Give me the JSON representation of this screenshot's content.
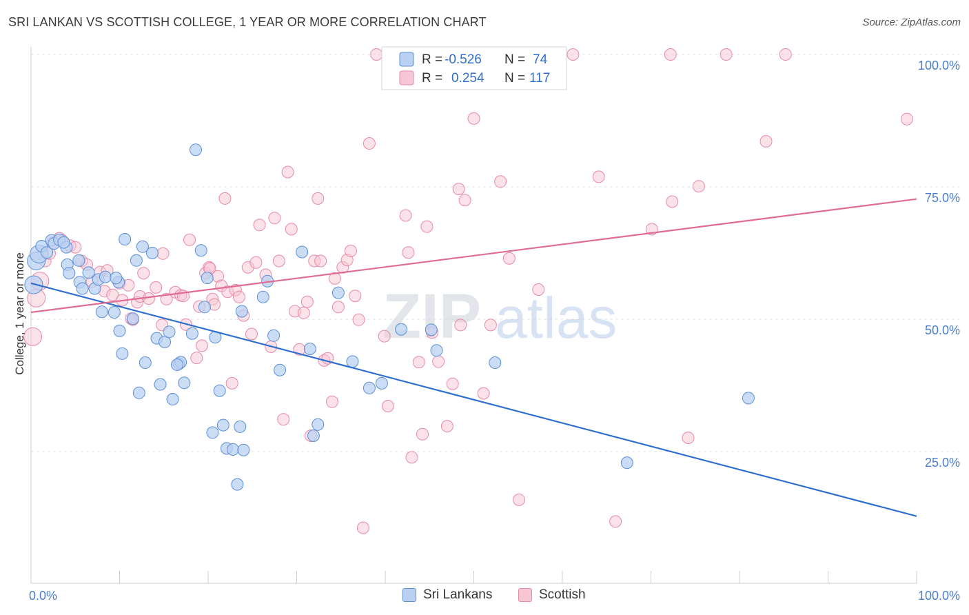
{
  "header": {
    "title": "SRI LANKAN VS SCOTTISH COLLEGE, 1 YEAR OR MORE CORRELATION CHART",
    "source": "Source: ZipAtlas.com"
  },
  "watermark": {
    "zip": "ZIP",
    "atlas": "atlas"
  },
  "colors": {
    "blue": "#5b8fd6",
    "blue_fill": "#b9d0f2",
    "blue_line": "#2e6fcf",
    "pink": "#e68aa6",
    "pink_fill": "#f7c6d4",
    "pink_line": "#e06b93",
    "tick_text": "#4a7cc9"
  },
  "legend": {
    "r_label": "R =",
    "n_label": "N =",
    "rows": [
      {
        "series": "Sri Lankans",
        "r": "-0.526",
        "n": "74"
      },
      {
        "series": "Scottish",
        "r": "0.254",
        "n": "117"
      }
    ]
  },
  "bottom_legend": [
    "Sri Lankans",
    "Scottish"
  ],
  "chart_data": {
    "type": "scatter",
    "title": "SRI LANKAN VS SCOTTISH COLLEGE, 1 YEAR OR MORE CORRELATION CHART",
    "xlabel": "",
    "ylabel": "College, 1 year or more",
    "xlim": [
      0,
      100
    ],
    "ylim": [
      3,
      101
    ],
    "x_tick_labels": [
      "0.0%",
      "100.0%"
    ],
    "y_ticks": [
      25,
      50,
      75,
      100
    ],
    "y_tick_labels": [
      "25.0%",
      "50.0%",
      "75.0%",
      "100.0%"
    ],
    "grid": true,
    "legend_position": "top-center",
    "series": [
      {
        "name": "Sri Lankans",
        "r": -0.526,
        "n": 74,
        "trend": {
          "x": [
            0,
            100
          ],
          "y": [
            56.8,
            12.8
          ]
        },
        "points": [
          [
            0.3,
            56.5
          ],
          [
            0.6,
            61.0
          ],
          [
            0.9,
            62.3
          ],
          [
            1.2,
            63.8
          ],
          [
            1.8,
            62.6
          ],
          [
            2.3,
            64.9
          ],
          [
            2.6,
            64.3
          ],
          [
            3.2,
            65.0
          ],
          [
            4.0,
            63.6
          ],
          [
            4.1,
            60.3
          ],
          [
            4.3,
            58.7
          ],
          [
            5.4,
            61.1
          ],
          [
            5.5,
            57.0
          ],
          [
            5.8,
            55.8
          ],
          [
            6.5,
            58.8
          ],
          [
            7.2,
            55.8
          ],
          [
            7.6,
            57.5
          ],
          [
            8.0,
            51.4
          ],
          [
            8.4,
            58.0
          ],
          [
            9.4,
            51.3
          ],
          [
            9.9,
            57.0
          ],
          [
            10.0,
            47.8
          ],
          [
            10.3,
            43.5
          ],
          [
            10.6,
            65.1
          ],
          [
            11.5,
            50.1
          ],
          [
            11.9,
            61.1
          ],
          [
            12.2,
            36.1
          ],
          [
            12.6,
            63.7
          ],
          [
            12.9,
            41.8
          ],
          [
            13.7,
            62.5
          ],
          [
            14.2,
            46.4
          ],
          [
            14.6,
            37.7
          ],
          [
            15.1,
            45.7
          ],
          [
            15.6,
            47.6
          ],
          [
            16.0,
            34.9
          ],
          [
            16.7,
            41.6
          ],
          [
            16.9,
            41.9
          ],
          [
            17.3,
            38.0
          ],
          [
            18.2,
            47.3
          ],
          [
            18.6,
            82.0
          ],
          [
            19.2,
            63.0
          ],
          [
            19.6,
            52.3
          ],
          [
            19.9,
            57.8
          ],
          [
            20.5,
            28.6
          ],
          [
            20.8,
            46.6
          ],
          [
            21.3,
            36.5
          ],
          [
            21.7,
            30.0
          ],
          [
            22.1,
            25.6
          ],
          [
            22.8,
            25.4
          ],
          [
            23.6,
            29.7
          ],
          [
            23.8,
            51.5
          ],
          [
            23.3,
            18.8
          ],
          [
            24.0,
            25.3
          ],
          [
            26.2,
            54.2
          ],
          [
            26.7,
            57.2
          ],
          [
            27.4,
            46.9
          ],
          [
            28.1,
            40.4
          ],
          [
            30.6,
            62.7
          ],
          [
            31.5,
            44.4
          ],
          [
            31.9,
            28.0
          ],
          [
            32.4,
            30.1
          ],
          [
            34.7,
            55.0
          ],
          [
            36.3,
            42.0
          ],
          [
            38.2,
            37.0
          ],
          [
            39.6,
            37.9
          ],
          [
            41.8,
            48.1
          ],
          [
            45.2,
            48.0
          ],
          [
            45.8,
            44.1
          ],
          [
            52.4,
            41.8
          ],
          [
            67.3,
            22.9
          ],
          [
            81.0,
            35.1
          ],
          [
            16.5,
            41.4
          ],
          [
            9.6,
            57.8
          ],
          [
            3.7,
            64.5
          ]
        ]
      },
      {
        "name": "Scottish",
        "r": 0.254,
        "n": 117,
        "trend": {
          "x": [
            0,
            100
          ],
          "y": [
            51.3,
            72.7
          ]
        },
        "points": [
          [
            0.2,
            46.7
          ],
          [
            0.6,
            54.0
          ],
          [
            1.0,
            57.2
          ],
          [
            1.6,
            61.0
          ],
          [
            2.1,
            62.4
          ],
          [
            2.4,
            64.4
          ],
          [
            3.2,
            65.3
          ],
          [
            3.5,
            64.9
          ],
          [
            4.4,
            63.9
          ],
          [
            5.0,
            63.6
          ],
          [
            5.7,
            61.0
          ],
          [
            6.3,
            60.3
          ],
          [
            6.9,
            57.1
          ],
          [
            7.8,
            58.9
          ],
          [
            8.3,
            55.3
          ],
          [
            8.6,
            59.2
          ],
          [
            9.2,
            54.6
          ],
          [
            10.0,
            56.8
          ],
          [
            10.3,
            53.6
          ],
          [
            11.0,
            56.4
          ],
          [
            11.3,
            50.1
          ],
          [
            11.5,
            49.9
          ],
          [
            12.0,
            53.2
          ],
          [
            12.3,
            54.3
          ],
          [
            12.7,
            58.7
          ],
          [
            13.3,
            53.9
          ],
          [
            14.1,
            56.0
          ],
          [
            14.8,
            48.9
          ],
          [
            14.9,
            62.4
          ],
          [
            15.3,
            53.8
          ],
          [
            16.3,
            55.1
          ],
          [
            16.9,
            54.5
          ],
          [
            17.2,
            54.4
          ],
          [
            17.5,
            49.0
          ],
          [
            17.9,
            65.0
          ],
          [
            18.7,
            42.7
          ],
          [
            19.0,
            52.4
          ],
          [
            19.3,
            45.0
          ],
          [
            19.7,
            58.7
          ],
          [
            20.1,
            59.8
          ],
          [
            20.5,
            53.8
          ],
          [
            20.7,
            52.8
          ],
          [
            21.1,
            58.1
          ],
          [
            21.5,
            56.3
          ],
          [
            21.9,
            72.8
          ],
          [
            22.2,
            55.2
          ],
          [
            22.7,
            37.9
          ],
          [
            23.1,
            55.5
          ],
          [
            23.5,
            54.2
          ],
          [
            24.0,
            50.7
          ],
          [
            24.5,
            59.8
          ],
          [
            24.9,
            47.2
          ],
          [
            25.4,
            60.7
          ],
          [
            25.8,
            67.8
          ],
          [
            26.5,
            58.4
          ],
          [
            27.1,
            44.8
          ],
          [
            27.5,
            69.1
          ],
          [
            28.0,
            61.0
          ],
          [
            28.5,
            31.1
          ],
          [
            29.0,
            77.8
          ],
          [
            29.4,
            67.0
          ],
          [
            29.8,
            51.5
          ],
          [
            30.3,
            44.3
          ],
          [
            30.8,
            51.2
          ],
          [
            31.2,
            53.3
          ],
          [
            31.6,
            28.0
          ],
          [
            32.0,
            61.0
          ],
          [
            32.4,
            72.8
          ],
          [
            32.7,
            61.0
          ],
          [
            33.1,
            42.2
          ],
          [
            33.5,
            42.6
          ],
          [
            34.0,
            34.4
          ],
          [
            34.3,
            57.7
          ],
          [
            34.7,
            52.3
          ],
          [
            35.2,
            59.8
          ],
          [
            35.7,
            61.2
          ],
          [
            36.1,
            62.9
          ],
          [
            36.6,
            54.4
          ],
          [
            37.0,
            49.9
          ],
          [
            37.5,
            10.6
          ],
          [
            38.2,
            83.2
          ],
          [
            39.0,
            100.0
          ],
          [
            39.9,
            46.8
          ],
          [
            40.3,
            33.6
          ],
          [
            41.4,
            94.9
          ],
          [
            42.3,
            69.6
          ],
          [
            42.6,
            62.6
          ],
          [
            43.0,
            23.9
          ],
          [
            43.8,
            41.9
          ],
          [
            44.2,
            28.3
          ],
          [
            44.7,
            67.5
          ],
          [
            45.3,
            47.5
          ],
          [
            46.0,
            42.0
          ],
          [
            47.0,
            29.8
          ],
          [
            47.6,
            37.8
          ],
          [
            48.3,
            74.6
          ],
          [
            48.5,
            48.9
          ],
          [
            49.0,
            72.5
          ],
          [
            50.0,
            87.9
          ],
          [
            51.1,
            36.0
          ],
          [
            51.9,
            48.9
          ],
          [
            53.0,
            76.0
          ],
          [
            54.0,
            61.5
          ],
          [
            55.1,
            15.9
          ],
          [
            57.3,
            55.6
          ],
          [
            59.2,
            99.8
          ],
          [
            61.2,
            100.0
          ],
          [
            64.1,
            76.9
          ],
          [
            66.0,
            11.8
          ],
          [
            70.1,
            67.0
          ],
          [
            72.2,
            100.0
          ],
          [
            72.4,
            72.2
          ],
          [
            75.4,
            75.1
          ],
          [
            74.2,
            27.6
          ],
          [
            78.5,
            100.0
          ],
          [
            83.0,
            83.6
          ],
          [
            85.2,
            100.0
          ],
          [
            98.9,
            87.8
          ],
          [
            20.2,
            59.6
          ]
        ]
      }
    ]
  }
}
